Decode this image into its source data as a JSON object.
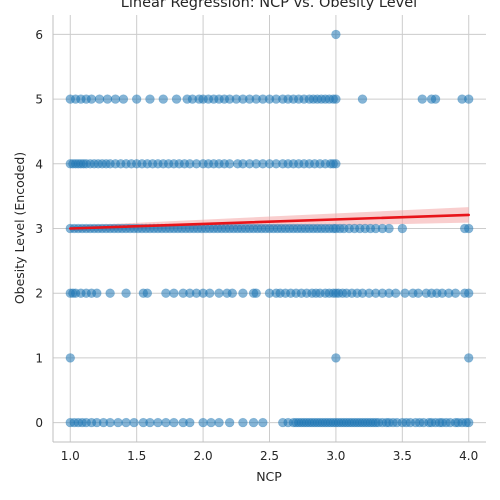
{
  "chart_data": {
    "type": "scatter",
    "title": "Linear Regression: NCP vs. Obesity Level",
    "xlabel": "NCP",
    "ylabel": "Obesity Level (Encoded)",
    "xlim": [
      0.87,
      4.13
    ],
    "ylim": [
      -0.3,
      6.3
    ],
    "x_ticks": [
      "1.0",
      "1.5",
      "2.0",
      "2.5",
      "3.0",
      "3.5",
      "4.0"
    ],
    "y_ticks": [
      "0",
      "1",
      "2",
      "3",
      "4",
      "5",
      "6"
    ],
    "grid": true,
    "colors": {
      "points": "#1f77b4",
      "regression_line": "#e8141a",
      "confidence_band": "#f4a6a6",
      "grid": "#cccccc"
    },
    "series": [
      {
        "kind": "points",
        "levels": [
          {
            "y": 0,
            "x": [
              1.0,
              1.03,
              1.06,
              1.09,
              1.12,
              1.16,
              1.2,
              1.25,
              1.3,
              1.36,
              1.42,
              1.48,
              1.55,
              1.6,
              1.66,
              1.72,
              1.78,
              1.85,
              1.9,
              2.0,
              2.06,
              2.12,
              2.2,
              2.3,
              2.38,
              2.45,
              2.6,
              2.64,
              2.68,
              2.7,
              2.72,
              2.74,
              2.76,
              2.78,
              2.8,
              2.82,
              2.84,
              2.86,
              2.88,
              2.9,
              2.92,
              2.94,
              2.96,
              2.98,
              3.0,
              3.02,
              3.04,
              3.06,
              3.08,
              3.1,
              3.12,
              3.14,
              3.16,
              3.18,
              3.2,
              3.22,
              3.24,
              3.26,
              3.28,
              3.3,
              3.32,
              3.35,
              3.38,
              3.4,
              3.43,
              3.46,
              3.5,
              3.53,
              3.56,
              3.6,
              3.63,
              3.66,
              3.7,
              3.72,
              3.75,
              3.78,
              3.8,
              3.83,
              3.86,
              3.9,
              3.92,
              3.95,
              3.98,
              4.0
            ]
          },
          {
            "y": 1,
            "x": [
              1.0,
              3.0,
              4.0
            ]
          },
          {
            "y": 2,
            "x": [
              1.0,
              1.02,
              1.04,
              1.08,
              1.12,
              1.16,
              1.2,
              1.3,
              1.42,
              1.55,
              1.58,
              1.72,
              1.78,
              1.85,
              1.9,
              1.95,
              2.0,
              2.05,
              2.12,
              2.18,
              2.22,
              2.3,
              2.38,
              2.4,
              2.5,
              2.55,
              2.58,
              2.62,
              2.66,
              2.7,
              2.74,
              2.78,
              2.82,
              2.85,
              2.88,
              2.92,
              2.95,
              2.98,
              3.0,
              3.02,
              3.05,
              3.08,
              3.12,
              3.16,
              3.2,
              3.25,
              3.3,
              3.35,
              3.4,
              3.45,
              3.52,
              3.58,
              3.62,
              3.68,
              3.72,
              3.76,
              3.8,
              3.85,
              3.9,
              3.97,
              4.0
            ]
          },
          {
            "y": 3,
            "x": [
              1.0,
              1.03,
              1.06,
              1.09,
              1.12,
              1.15,
              1.18,
              1.21,
              1.24,
              1.27,
              1.3,
              1.33,
              1.36,
              1.39,
              1.42,
              1.45,
              1.48,
              1.51,
              1.54,
              1.57,
              1.6,
              1.63,
              1.66,
              1.69,
              1.72,
              1.75,
              1.78,
              1.81,
              1.84,
              1.87,
              1.9,
              1.93,
              1.96,
              1.99,
              2.02,
              2.05,
              2.08,
              2.11,
              2.14,
              2.17,
              2.2,
              2.23,
              2.26,
              2.29,
              2.32,
              2.35,
              2.38,
              2.41,
              2.44,
              2.47,
              2.5,
              2.53,
              2.56,
              2.59,
              2.62,
              2.65,
              2.68,
              2.71,
              2.74,
              2.77,
              2.8,
              2.83,
              2.86,
              2.89,
              2.92,
              2.95,
              2.98,
              3.0,
              3.03,
              3.06,
              3.1,
              3.14,
              3.18,
              3.22,
              3.26,
              3.3,
              3.35,
              3.4,
              3.5,
              3.97,
              4.0
            ]
          },
          {
            "y": 4,
            "x": [
              1.0,
              1.02,
              1.04,
              1.06,
              1.08,
              1.1,
              1.12,
              1.15,
              1.18,
              1.21,
              1.24,
              1.27,
              1.3,
              1.34,
              1.38,
              1.42,
              1.46,
              1.5,
              1.54,
              1.58,
              1.62,
              1.66,
              1.7,
              1.74,
              1.78,
              1.82,
              1.86,
              1.9,
              1.95,
              2.0,
              2.04,
              2.08,
              2.12,
              2.16,
              2.2,
              2.26,
              2.3,
              2.35,
              2.4,
              2.45,
              2.5,
              2.55,
              2.6,
              2.64,
              2.68,
              2.72,
              2.76,
              2.8,
              2.84,
              2.88,
              2.92,
              2.96,
              2.98,
              3.0
            ]
          },
          {
            "y": 5,
            "x": [
              1.0,
              1.04,
              1.08,
              1.12,
              1.16,
              1.22,
              1.28,
              1.34,
              1.4,
              1.5,
              1.6,
              1.7,
              1.8,
              1.88,
              1.92,
              1.97,
              2.0,
              2.04,
              2.08,
              2.12,
              2.16,
              2.2,
              2.25,
              2.3,
              2.35,
              2.4,
              2.45,
              2.5,
              2.55,
              2.6,
              2.64,
              2.68,
              2.72,
              2.76,
              2.8,
              2.83,
              2.86,
              2.89,
              2.92,
              2.95,
              2.98,
              3.0,
              3.2,
              3.65,
              3.72,
              3.75,
              3.95,
              4.0
            ]
          },
          {
            "y": 6,
            "x": [
              3.0
            ]
          }
        ]
      },
      {
        "kind": "regression",
        "x": [
          1.0,
          4.0
        ],
        "y": [
          3.0,
          3.21
        ],
        "ci_lower": [
          2.96,
          3.09
        ],
        "ci_upper": [
          3.04,
          3.33
        ]
      }
    ]
  }
}
